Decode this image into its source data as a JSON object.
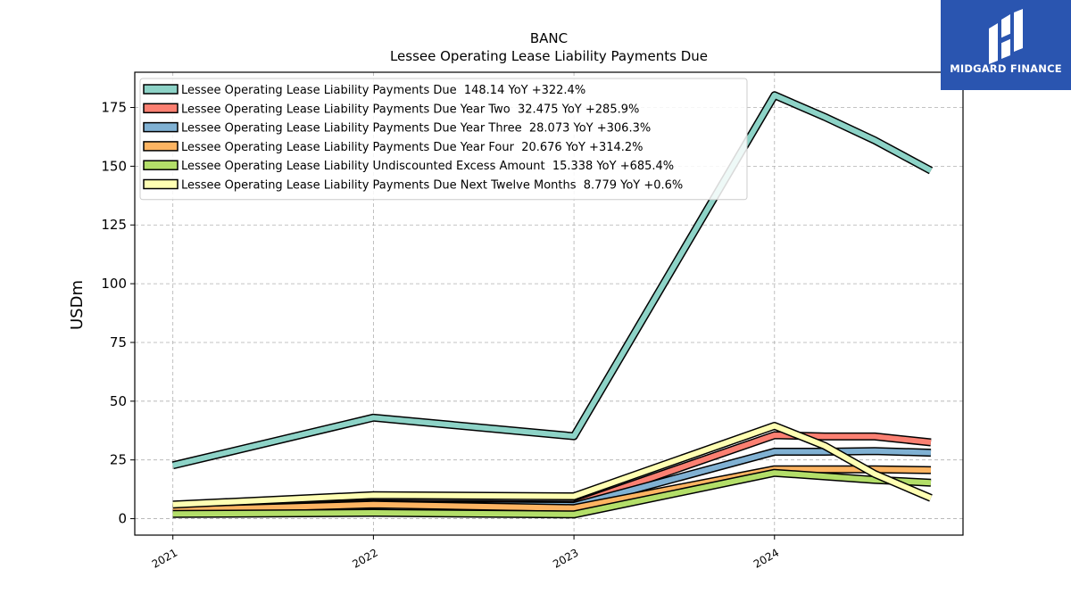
{
  "chart_data": {
    "type": "line",
    "title": "BANC",
    "subtitle": "Lessee Operating Lease Liability Payments Due",
    "ylabel": "USDm",
    "xlabel": "",
    "ylim": [
      -7,
      190
    ],
    "yticks": [
      0,
      25,
      50,
      75,
      100,
      125,
      150,
      175
    ],
    "xlim": [
      2020.81,
      2024.94
    ],
    "xticks": [
      2021,
      2022,
      2023,
      2024
    ],
    "xtick_labels": [
      "2021",
      "2022",
      "2023",
      "2024"
    ],
    "grid": true,
    "legend_position": "upper-left",
    "series": [
      {
        "name": "Lessee Operating Lease Liability Payments Due",
        "legend": "Lessee Operating Lease Liability Payments Due  148.14 YoY +322.4%",
        "color": "#8dd3c7",
        "x": [
          2021.0,
          2022.0,
          2023.0,
          2024.0,
          2024.25,
          2024.5,
          2024.78
        ],
        "values": [
          22.7,
          43.0,
          35.1,
          180.2,
          171.0,
          161.0,
          148.14
        ]
      },
      {
        "name": "Lessee Operating Lease Liability Payments Due Year Two",
        "legend": "Lessee Operating Lease Liability Payments Due Year Two  32.475 YoY +285.9%",
        "color": "#fb8072",
        "x": [
          2021.0,
          2022.0,
          2023.0,
          2024.0,
          2024.25,
          2024.5,
          2024.78
        ],
        "values": [
          4.5,
          6.5,
          6.0,
          35.5,
          35.0,
          35.0,
          32.475
        ]
      },
      {
        "name": "Lessee Operating Lease Liability Payments Due Year Three",
        "legend": "Lessee Operating Lease Liability Payments Due Year Three  28.073 YoY +306.3%",
        "color": "#80b1d3",
        "x": [
          2021.0,
          2022.0,
          2023.0,
          2024.0,
          2024.25,
          2024.5,
          2024.78
        ],
        "values": [
          4.0,
          6.0,
          5.5,
          28.5,
          28.5,
          28.8,
          28.073
        ]
      },
      {
        "name": "Lessee Operating Lease Liability Payments Due Year Four",
        "legend": "Lessee Operating Lease Liability Payments Due Year Four  20.676 YoY +314.2%",
        "color": "#fdb462",
        "x": [
          2021.0,
          2022.0,
          2023.0,
          2024.0,
          2024.25,
          2024.5,
          2024.78
        ],
        "values": [
          3.5,
          6.0,
          4.5,
          21.0,
          21.0,
          21.0,
          20.676
        ]
      },
      {
        "name": "Lessee Operating Lease Liability Undiscounted Excess Amount",
        "legend": "Lessee Operating Lease Liability Undiscounted Excess Amount  15.338 YoY +685.4%",
        "color": "#b3de69",
        "x": [
          2021.0,
          2022.0,
          2023.0,
          2024.0,
          2024.25,
          2024.5,
          2024.78
        ],
        "values": [
          2.0,
          2.5,
          1.8,
          19.5,
          18.0,
          16.5,
          15.338
        ]
      },
      {
        "name": "Lessee Operating Lease Liability Payments Due Next Twelve Months",
        "legend": "Lessee Operating Lease Liability Payments Due Next Twelve Months  8.779 YoY +0.6%",
        "color": "#ffffb3",
        "x": [
          2021.0,
          2022.0,
          2023.0,
          2024.0,
          2024.25,
          2024.5,
          2024.78
        ],
        "values": [
          6.0,
          10.0,
          9.5,
          39.5,
          31.0,
          19.0,
          8.779
        ]
      }
    ]
  },
  "logo": {
    "text": "MIDGARD FINANCE",
    "color": "#2a55b0"
  }
}
